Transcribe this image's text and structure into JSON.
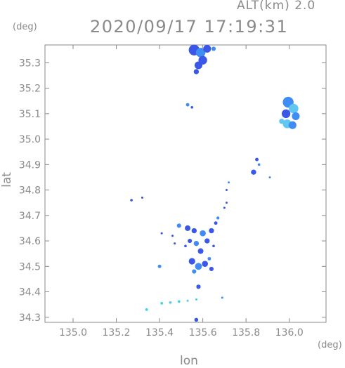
{
  "header": {
    "altitude": "ALT(km) 2.0",
    "datetime": "2020/09/17 17:19:31"
  },
  "chart_data": {
    "type": "heatmap",
    "xlabel": "lon",
    "ylabel": "lat",
    "x_unit": "(deg)",
    "y_unit": "(deg)",
    "xlim": [
      134.87,
      136.17
    ],
    "ylim": [
      34.28,
      35.37
    ],
    "x_ticks": [
      "135.0",
      "135.2",
      "135.4",
      "135.6",
      "135.8",
      "136.0"
    ],
    "y_ticks": [
      "34.3",
      "34.4",
      "34.5",
      "34.6",
      "34.7",
      "34.8",
      "34.9",
      "35.0",
      "35.1",
      "35.2",
      "35.3"
    ],
    "grid": false,
    "colors": {
      "core": "#3a57e8",
      "mid": "#3f8cf4",
      "light": "#5fc7f0",
      "cyan": "#35d4e8"
    },
    "echoes": [
      {
        "lon": 135.56,
        "lat": 35.35,
        "r": 0.025,
        "color": "#3a57e8"
      },
      {
        "lon": 135.59,
        "lat": 35.34,
        "r": 0.022,
        "color": "#3f8cf4"
      },
      {
        "lon": 135.62,
        "lat": 35.355,
        "r": 0.018,
        "color": "#3a57e8"
      },
      {
        "lon": 135.58,
        "lat": 35.29,
        "r": 0.018,
        "color": "#3a57e8"
      },
      {
        "lon": 135.6,
        "lat": 35.31,
        "r": 0.02,
        "color": "#3a57e8"
      },
      {
        "lon": 135.57,
        "lat": 35.265,
        "r": 0.012,
        "color": "#3a57e8"
      },
      {
        "lon": 135.65,
        "lat": 35.355,
        "r": 0.01,
        "color": "#3f8cf4"
      },
      {
        "lon": 135.53,
        "lat": 35.135,
        "r": 0.008,
        "color": "#3f8cf4"
      },
      {
        "lon": 135.55,
        "lat": 35.125,
        "r": 0.006,
        "color": "#3a57e8"
      },
      {
        "lon": 135.995,
        "lat": 35.145,
        "r": 0.025,
        "color": "#3f8cf4"
      },
      {
        "lon": 136.02,
        "lat": 35.12,
        "r": 0.022,
        "color": "#5fc7f0"
      },
      {
        "lon": 135.985,
        "lat": 35.1,
        "r": 0.02,
        "color": "#3a57e8"
      },
      {
        "lon": 136.03,
        "lat": 35.09,
        "r": 0.018,
        "color": "#3f8cf4"
      },
      {
        "lon": 135.99,
        "lat": 35.06,
        "r": 0.02,
        "color": "#5fc7f0"
      },
      {
        "lon": 136.015,
        "lat": 35.055,
        "r": 0.018,
        "color": "#3f8cf4"
      },
      {
        "lon": 135.965,
        "lat": 35.07,
        "r": 0.012,
        "color": "#5fc7f0"
      },
      {
        "lon": 135.85,
        "lat": 34.92,
        "r": 0.008,
        "color": "#3a57e8"
      },
      {
        "lon": 135.835,
        "lat": 34.87,
        "r": 0.012,
        "color": "#3a57e8"
      },
      {
        "lon": 135.86,
        "lat": 34.9,
        "r": 0.006,
        "color": "#3f8cf4"
      },
      {
        "lon": 135.91,
        "lat": 34.85,
        "r": 0.004,
        "color": "#3f8cf4"
      },
      {
        "lon": 135.72,
        "lat": 34.83,
        "r": 0.004,
        "color": "#3f8cf4"
      },
      {
        "lon": 135.71,
        "lat": 34.8,
        "r": 0.003,
        "color": "#3a57e8"
      },
      {
        "lon": 135.71,
        "lat": 34.75,
        "r": 0.003,
        "color": "#3a57e8"
      },
      {
        "lon": 135.7,
        "lat": 34.73,
        "r": 0.004,
        "color": "#3a57e8"
      },
      {
        "lon": 135.27,
        "lat": 34.76,
        "r": 0.006,
        "color": "#3a57e8"
      },
      {
        "lon": 135.32,
        "lat": 34.77,
        "r": 0.005,
        "color": "#3a57e8"
      },
      {
        "lon": 135.49,
        "lat": 34.66,
        "r": 0.01,
        "color": "#3f8cf4"
      },
      {
        "lon": 135.53,
        "lat": 34.65,
        "r": 0.013,
        "color": "#3a57e8"
      },
      {
        "lon": 135.56,
        "lat": 34.64,
        "r": 0.012,
        "color": "#3a57e8"
      },
      {
        "lon": 135.6,
        "lat": 34.63,
        "r": 0.014,
        "color": "#3f8cf4"
      },
      {
        "lon": 135.64,
        "lat": 34.64,
        "r": 0.012,
        "color": "#3a57e8"
      },
      {
        "lon": 135.62,
        "lat": 34.6,
        "r": 0.012,
        "color": "#3a57e8"
      },
      {
        "lon": 135.57,
        "lat": 34.59,
        "r": 0.012,
        "color": "#3f8cf4"
      },
      {
        "lon": 135.54,
        "lat": 34.6,
        "r": 0.01,
        "color": "#3a57e8"
      },
      {
        "lon": 135.59,
        "lat": 34.56,
        "r": 0.013,
        "color": "#3a57e8"
      },
      {
        "lon": 135.55,
        "lat": 34.52,
        "r": 0.015,
        "color": "#3a57e8"
      },
      {
        "lon": 135.58,
        "lat": 34.5,
        "r": 0.016,
        "color": "#3f8cf4"
      },
      {
        "lon": 135.61,
        "lat": 34.51,
        "r": 0.014,
        "color": "#3a57e8"
      },
      {
        "lon": 135.64,
        "lat": 34.49,
        "r": 0.01,
        "color": "#3a57e8"
      },
      {
        "lon": 135.56,
        "lat": 34.48,
        "r": 0.01,
        "color": "#3f8cf4"
      },
      {
        "lon": 135.66,
        "lat": 34.67,
        "r": 0.008,
        "color": "#3a57e8"
      },
      {
        "lon": 135.67,
        "lat": 34.69,
        "r": 0.007,
        "color": "#3f8cf4"
      },
      {
        "lon": 135.46,
        "lat": 34.62,
        "r": 0.005,
        "color": "#3a57e8"
      },
      {
        "lon": 135.47,
        "lat": 34.59,
        "r": 0.005,
        "color": "#3a57e8"
      },
      {
        "lon": 135.41,
        "lat": 34.63,
        "r": 0.005,
        "color": "#3a57e8"
      },
      {
        "lon": 135.4,
        "lat": 34.5,
        "r": 0.008,
        "color": "#3f8cf4"
      },
      {
        "lon": 135.63,
        "lat": 34.53,
        "r": 0.008,
        "color": "#3f8cf4"
      },
      {
        "lon": 135.52,
        "lat": 34.58,
        "r": 0.006,
        "color": "#3a57e8"
      },
      {
        "lon": 135.65,
        "lat": 34.58,
        "r": 0.006,
        "color": "#3a57e8"
      },
      {
        "lon": 135.58,
        "lat": 34.42,
        "r": 0.01,
        "color": "#3a57e8"
      },
      {
        "lon": 135.57,
        "lat": 34.29,
        "r": 0.009,
        "color": "#3a57e8"
      },
      {
        "lon": 135.34,
        "lat": 34.33,
        "r": 0.006,
        "color": "#35d4e8"
      },
      {
        "lon": 135.41,
        "lat": 34.355,
        "r": 0.006,
        "color": "#35d4e8"
      },
      {
        "lon": 135.45,
        "lat": 34.358,
        "r": 0.006,
        "color": "#5fc7f0"
      },
      {
        "lon": 135.49,
        "lat": 34.362,
        "r": 0.006,
        "color": "#35d4e8"
      },
      {
        "lon": 135.53,
        "lat": 34.365,
        "r": 0.005,
        "color": "#5fc7f0"
      },
      {
        "lon": 135.57,
        "lat": 34.37,
        "r": 0.004,
        "color": "#35d4e8"
      },
      {
        "lon": 135.69,
        "lat": 34.377,
        "r": 0.003,
        "color": "#3f8cf4"
      }
    ]
  }
}
